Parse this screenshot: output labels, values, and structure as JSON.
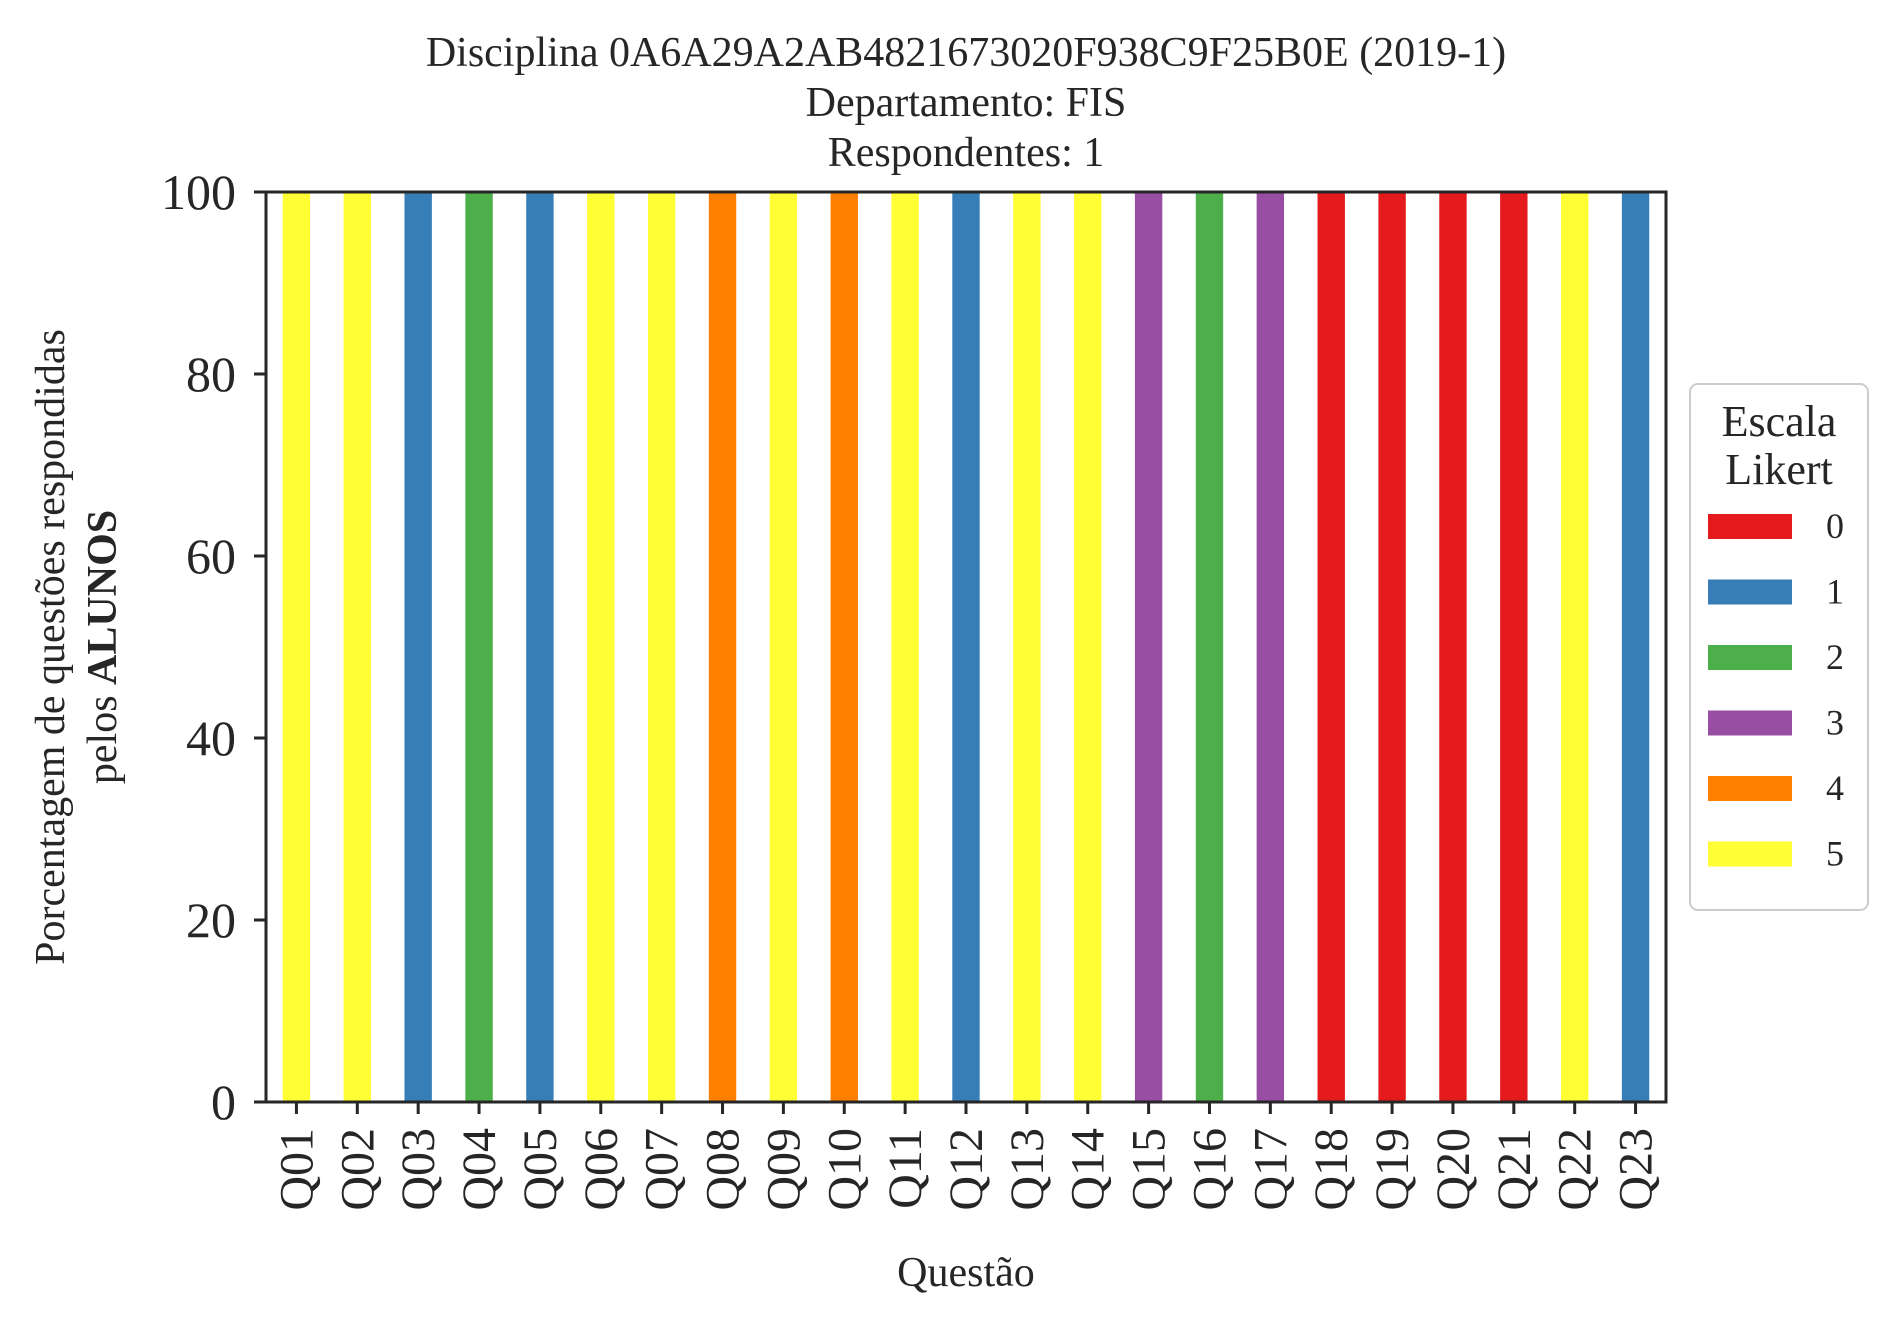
{
  "chart_data": {
    "type": "bar",
    "stacked": true,
    "title_lines": [
      "Disciplina 0A6A29A2AB4821673020F938C9F25B0E (2019-1)",
      "Departamento: FIS",
      "Respondentes: 1"
    ],
    "ylabel_line1": "Porcentagem de questões respondidas",
    "ylabel_line2_prefix": "pelos ",
    "ylabel_line2_bold": "ALUNOS",
    "xlabel": "Questão",
    "ylim": [
      0,
      100
    ],
    "yticks": [
      0,
      20,
      40,
      60,
      80,
      100
    ],
    "grid": false,
    "categories": [
      "Q01",
      "Q02",
      "Q03",
      "Q04",
      "Q05",
      "Q06",
      "Q07",
      "Q08",
      "Q09",
      "Q10",
      "Q11",
      "Q12",
      "Q13",
      "Q14",
      "Q15",
      "Q16",
      "Q17",
      "Q18",
      "Q19",
      "Q20",
      "Q21",
      "Q22",
      "Q23"
    ],
    "legend": {
      "title_lines": [
        "Escala",
        "Likert"
      ],
      "placement": "right"
    },
    "series": [
      {
        "name": "0",
        "color": "#e41a1c",
        "values": [
          0,
          0,
          0,
          0,
          0,
          0,
          0,
          0,
          0,
          0,
          0,
          0,
          0,
          0,
          0,
          0,
          0,
          100,
          100,
          100,
          100,
          0,
          0
        ]
      },
      {
        "name": "1",
        "color": "#377eb8",
        "values": [
          0,
          0,
          100,
          0,
          100,
          0,
          0,
          0,
          0,
          0,
          0,
          100,
          0,
          0,
          0,
          0,
          0,
          0,
          0,
          0,
          0,
          0,
          100
        ]
      },
      {
        "name": "2",
        "color": "#4daf4a",
        "values": [
          0,
          0,
          0,
          100,
          0,
          0,
          0,
          0,
          0,
          0,
          0,
          0,
          0,
          0,
          0,
          100,
          0,
          0,
          0,
          0,
          0,
          0,
          0
        ]
      },
      {
        "name": "3",
        "color": "#984ea3",
        "values": [
          0,
          0,
          0,
          0,
          0,
          0,
          0,
          0,
          0,
          0,
          0,
          0,
          0,
          0,
          100,
          0,
          100,
          0,
          0,
          0,
          0,
          0,
          0
        ]
      },
      {
        "name": "4",
        "color": "#ff7f00",
        "values": [
          0,
          0,
          0,
          0,
          0,
          0,
          0,
          100,
          0,
          100,
          0,
          0,
          0,
          0,
          0,
          0,
          0,
          0,
          0,
          0,
          0,
          0,
          0
        ]
      },
      {
        "name": "5",
        "color": "#ffff33",
        "values": [
          100,
          100,
          0,
          0,
          0,
          100,
          100,
          0,
          100,
          0,
          100,
          0,
          100,
          100,
          0,
          0,
          0,
          0,
          0,
          0,
          0,
          100,
          0
        ]
      }
    ]
  }
}
